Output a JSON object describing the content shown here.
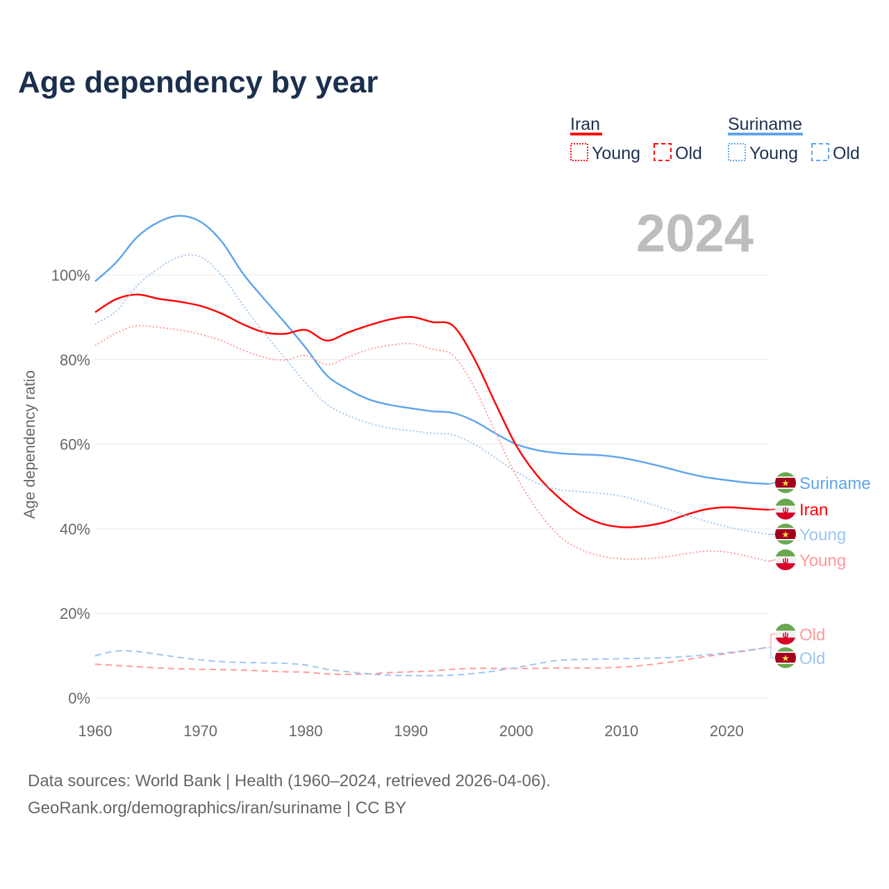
{
  "chart_data": {
    "type": "line",
    "title": "Age dependency by year",
    "xlabel": "",
    "ylabel": "Age dependency ratio",
    "xlim": [
      1960,
      2024
    ],
    "ylim": [
      0,
      115
    ],
    "x_ticks": [
      "1960",
      "1970",
      "1980",
      "1990",
      "2000",
      "2010",
      "2020"
    ],
    "y_ticks": [
      "0%",
      "20%",
      "40%",
      "60%",
      "80%",
      "100%"
    ],
    "grid": true,
    "highlight_year": "2024",
    "legend": {
      "placement": "top-right",
      "groups": [
        {
          "name": "Iran",
          "color": "#ff0000",
          "items": [
            "Young",
            "Old"
          ]
        },
        {
          "name": "Suriname",
          "color": "#5ea5ea",
          "items": [
            "Young",
            "Old"
          ]
        }
      ]
    },
    "x": [
      1960,
      1962,
      1964,
      1966,
      1968,
      1970,
      1972,
      1974,
      1976,
      1978,
      1980,
      1982,
      1984,
      1986,
      1988,
      1990,
      1992,
      1994,
      1996,
      1998,
      2000,
      2002,
      2004,
      2006,
      2008,
      2010,
      2012,
      2014,
      2016,
      2018,
      2020,
      2022,
      2024
    ],
    "series": [
      {
        "name": "Suriname",
        "end_label": "Suriname",
        "country": "suriname",
        "style": "solid",
        "color": "#5ea5ea",
        "values": [
          98.5,
          103,
          109,
          112.5,
          114,
          112.6,
          108,
          100.5,
          94.5,
          88.8,
          82.8,
          76.3,
          73,
          70.6,
          69.3,
          68.5,
          67.8,
          67.4,
          65.5,
          62.6,
          60,
          58.6,
          57.9,
          57.6,
          57.4,
          56.8,
          55.8,
          54.6,
          53.3,
          52.2,
          51.5,
          50.9,
          50.6
        ]
      },
      {
        "name": "Iran",
        "end_label": "Iran",
        "country": "iran",
        "style": "solid",
        "color": "#ff0000",
        "values": [
          91.2,
          94.3,
          95.4,
          94.4,
          93.7,
          92.7,
          90.9,
          88.4,
          86.5,
          86.1,
          87,
          84.5,
          86.4,
          88.1,
          89.5,
          90.1,
          88.9,
          88,
          80.3,
          69.8,
          59.7,
          52.6,
          47.5,
          43.6,
          41.3,
          40.4,
          40.6,
          41.5,
          43.2,
          44.6,
          45.1,
          44.8,
          44.5
        ]
      },
      {
        "name": "Suriname Young",
        "end_label": "Young",
        "country": "suriname",
        "style": "dotted",
        "color": "#9cc5f0",
        "values": [
          88.4,
          91.5,
          97.5,
          101.5,
          104.3,
          104.3,
          100,
          93,
          86.5,
          80.5,
          74.5,
          69.5,
          66.8,
          65,
          63.8,
          63.2,
          62.6,
          62.2,
          60,
          56.8,
          53.5,
          50.8,
          49.3,
          48.8,
          48.4,
          47.7,
          46.4,
          44.9,
          43.3,
          41.8,
          40.5,
          39.5,
          38.7
        ]
      },
      {
        "name": "Iran Young",
        "end_label": "Young",
        "country": "iran",
        "style": "dotted",
        "color": "#ff9a9a",
        "values": [
          83.3,
          86.3,
          88,
          87.6,
          87,
          86,
          84.5,
          82.3,
          80.6,
          79.9,
          81,
          78.8,
          80.6,
          82.4,
          83.4,
          83.8,
          82.5,
          81,
          73.5,
          63,
          52.5,
          44.5,
          38.5,
          35.3,
          33.6,
          32.9,
          32.9,
          33.3,
          34.1,
          34.7,
          34.5,
          33.5,
          32.3
        ]
      },
      {
        "name": "Iran Old",
        "end_label": "Old",
        "country": "iran",
        "style": "dashed",
        "color": "#ff9a9a",
        "values": [
          8,
          7.7,
          7.4,
          7.1,
          6.9,
          6.8,
          6.7,
          6.6,
          6.4,
          6.2,
          6.1,
          5.7,
          5.6,
          5.7,
          6.0,
          6.2,
          6.4,
          6.8,
          7.0,
          7.0,
          7.0,
          7.0,
          7.1,
          7.1,
          7.1,
          7.3,
          7.7,
          8.3,
          9.0,
          9.8,
          10.5,
          11.2,
          12.0
        ]
      },
      {
        "name": "Suriname Old",
        "end_label": "Old",
        "country": "suriname",
        "style": "dashed",
        "color": "#9cc5f0",
        "values": [
          10,
          11.1,
          11,
          10.3,
          9.6,
          9,
          8.6,
          8.4,
          8.3,
          8.2,
          7.8,
          6.8,
          6.2,
          5.7,
          5.4,
          5.3,
          5.3,
          5.4,
          5.8,
          6.4,
          7.2,
          8.1,
          8.9,
          9.1,
          9.2,
          9.3,
          9.4,
          9.5,
          9.8,
          10.2,
          10.7,
          11.3,
          12.0
        ]
      }
    ]
  },
  "footer": {
    "line1": "Data sources: World Bank | Health (1960–2024, retrieved 2026-04-06).",
    "line2": "GeoRank.org/demographics/iran/suriname | CC BY"
  }
}
